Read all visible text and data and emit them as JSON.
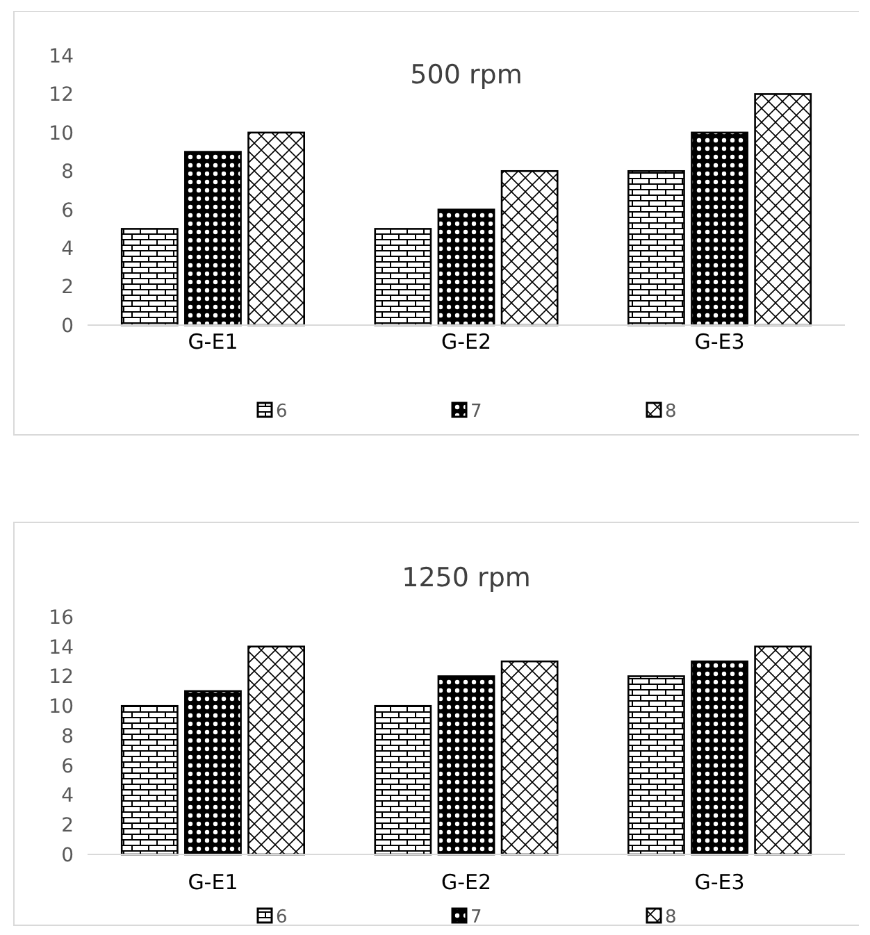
{
  "chart_data": [
    {
      "type": "bar",
      "title": "500 rpm",
      "categories": [
        "G-E1",
        "G-E2",
        "G-E3"
      ],
      "series": [
        {
          "name": "6",
          "color": "#000000",
          "values": [
            5,
            5,
            8
          ]
        },
        {
          "name": "7",
          "color": "#000000",
          "values": [
            9,
            6,
            10
          ]
        },
        {
          "name": "8",
          "color": "#000000",
          "values": [
            10,
            8,
            12
          ]
        }
      ],
      "ylim": [
        0,
        14
      ],
      "yticks": [
        0,
        2,
        4,
        6,
        8,
        10,
        12,
        14
      ],
      "grid": false,
      "legend": "bottom"
    },
    {
      "type": "bar",
      "title": "1250 rpm",
      "categories": [
        "G-E1",
        "G-E2",
        "G-E3"
      ],
      "series": [
        {
          "name": "6",
          "color": "#000000",
          "values": [
            10,
            10,
            12
          ]
        },
        {
          "name": "7",
          "color": "#000000",
          "values": [
            11,
            12,
            13
          ]
        },
        {
          "name": "8",
          "color": "#000000",
          "values": [
            14,
            13,
            14
          ]
        }
      ],
      "ylim": [
        0,
        16
      ],
      "yticks": [
        0,
        2,
        4,
        6,
        8,
        10,
        12,
        14,
        16
      ],
      "grid": false,
      "legend": "bottom"
    }
  ]
}
